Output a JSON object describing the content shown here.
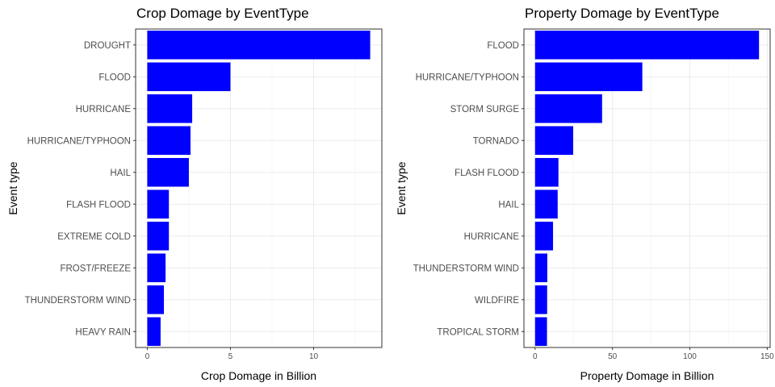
{
  "chart_data": [
    {
      "type": "bar",
      "orientation": "horizontal",
      "title": "Crop Domage by EventType",
      "xlabel": "Crop Domage in Billion",
      "ylabel": "Event type",
      "categories": [
        "DROUGHT",
        "FLOOD",
        "HURRICANE",
        "HURRICANE/TYPHOON",
        "HAIL",
        "FLASH FLOOD",
        "EXTREME COLD",
        "FROST/FREEZE",
        "THUNDERSTORM WIND",
        "HEAVY RAIN"
      ],
      "values": [
        13.4,
        5.0,
        2.7,
        2.6,
        2.5,
        1.3,
        1.3,
        1.1,
        1.0,
        0.8
      ],
      "xlim": [
        -0.7,
        14.1
      ],
      "xticks": [
        0,
        5,
        10
      ],
      "tick_labels": [
        "0",
        "5",
        "10"
      ],
      "bar_color": "#0000FF",
      "grid": true
    },
    {
      "type": "bar",
      "orientation": "horizontal",
      "title": "Property Domage by EventType",
      "xlabel": "Property Domage in Billion",
      "ylabel": "Event type",
      "categories": [
        "FLOOD",
        "HURRICANE/TYPHOON",
        "STORM SURGE",
        "TORNADO",
        "FLASH FLOOD",
        "HAIL",
        "HURRICANE",
        "THUNDERSTORM WIND",
        "WILDFIRE",
        "TROPICAL STORM"
      ],
      "values": [
        144.7,
        69.3,
        43.3,
        24.6,
        15.1,
        14.6,
        11.6,
        7.9,
        7.8,
        7.7
      ],
      "xlim": [
        -7.2,
        151.9
      ],
      "xticks": [
        0,
        50,
        100,
        150
      ],
      "tick_labels": [
        "0",
        "50",
        "100",
        "150"
      ],
      "bar_color": "#0000FF",
      "grid": true
    }
  ]
}
